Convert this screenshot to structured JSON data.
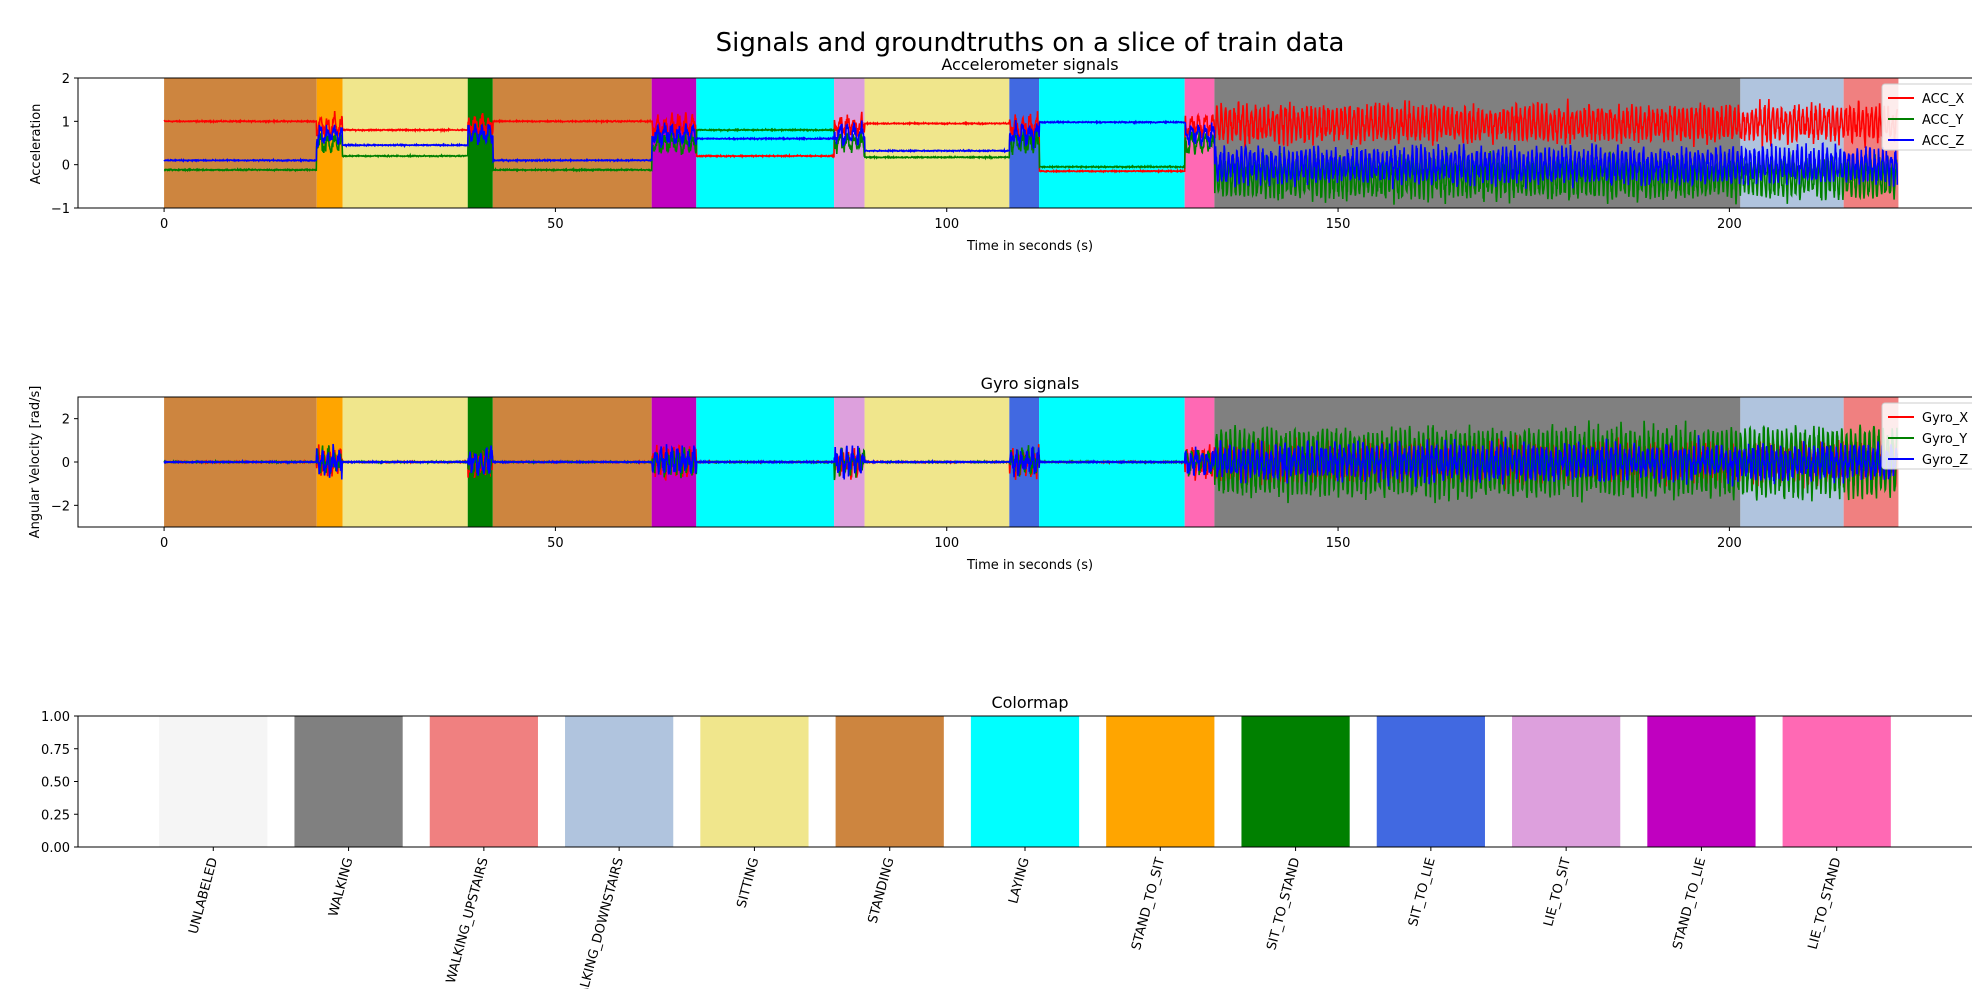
{
  "figure_title": "Signals and groundtruths  on a slice of train data",
  "chart_data": [
    {
      "type": "line",
      "title": "Accelerometer signals",
      "xlabel": "Time in seconds (s)",
      "ylabel": "Acceleration",
      "xlim": [
        -11,
        231
      ],
      "ylim": [
        -1,
        2
      ],
      "xticks": [
        0,
        50,
        100,
        150,
        200
      ],
      "yticks": [
        -1,
        0,
        1,
        2
      ],
      "legend": [
        "ACC_X",
        "ACC_Y",
        "ACC_Z"
      ],
      "legend_position": "right",
      "series": [
        {
          "name": "ACC_X",
          "color": "#ff0000"
        },
        {
          "name": "ACC_Y",
          "color": "#008000"
        },
        {
          "name": "ACC_Z",
          "color": "#0000ff"
        }
      ]
    },
    {
      "type": "line",
      "title": "Gyro signals",
      "xlabel": "Time in seconds (s)",
      "ylabel": "Angular Velocity [rad/s]",
      "xlim": [
        -11,
        231
      ],
      "ylim": [
        -3,
        3
      ],
      "xticks": [
        0,
        50,
        100,
        150,
        200
      ],
      "yticks": [
        -2,
        0,
        2
      ],
      "legend": [
        "Gyro_X",
        "Gyro_Y",
        "Gyro_Z"
      ],
      "legend_position": "right",
      "series": [
        {
          "name": "Gyro_X",
          "color": "#ff0000"
        },
        {
          "name": "Gyro_Y",
          "color": "#008000"
        },
        {
          "name": "Gyro_Z",
          "color": "#0000ff"
        }
      ]
    },
    {
      "type": "bar",
      "title": "Colormap",
      "categories": [
        "UNLABELED",
        "WALKING",
        "WALKING_UPSTAIRS",
        "WALKING_DOWNSTAIRS",
        "SITTING",
        "STANDING",
        "LAYING",
        "STAND_TO_SIT",
        "SIT_TO_STAND",
        "SIT_TO_LIE",
        "LIE_TO_SIT",
        "STAND_TO_LIE",
        "LIE_TO_STAND"
      ],
      "values": [
        1,
        1,
        1,
        1,
        1,
        1,
        1,
        1,
        1,
        1,
        1,
        1,
        1
      ],
      "colors": [
        "#f5f5f5",
        "#808080",
        "#f08080",
        "#b0c4de",
        "#f0e68c",
        "#cd853f",
        "#00ffff",
        "#ffa500",
        "#008000",
        "#4169e1",
        "#dda0dd",
        "#c000c0",
        "#ff69b4"
      ],
      "ylim": [
        0,
        1
      ],
      "yticks": [
        "0.00",
        "0.25",
        "0.50",
        "0.75",
        "1.00"
      ],
      "xlim": [
        -1,
        13
      ]
    }
  ],
  "activity_segments": [
    {
      "start": 0,
      "end": 19.5,
      "activity": "STANDING"
    },
    {
      "start": 19.5,
      "end": 22.8,
      "activity": "STAND_TO_SIT"
    },
    {
      "start": 22.8,
      "end": 38.8,
      "activity": "SITTING"
    },
    {
      "start": 38.8,
      "end": 42.0,
      "activity": "SIT_TO_STAND"
    },
    {
      "start": 42.0,
      "end": 62.3,
      "activity": "STANDING"
    },
    {
      "start": 62.3,
      "end": 68.0,
      "activity": "STAND_TO_LIE"
    },
    {
      "start": 68.0,
      "end": 85.6,
      "activity": "LAYING"
    },
    {
      "start": 85.6,
      "end": 89.5,
      "activity": "LIE_TO_SIT"
    },
    {
      "start": 89.5,
      "end": 108.0,
      "activity": "SITTING"
    },
    {
      "start": 108.0,
      "end": 111.8,
      "activity": "SIT_TO_LIE"
    },
    {
      "start": 111.8,
      "end": 130.4,
      "activity": "LAYING"
    },
    {
      "start": 130.4,
      "end": 134.2,
      "activity": "LIE_TO_STAND"
    },
    {
      "start": 134.2,
      "end": 201.4,
      "activity": "WALKING"
    },
    {
      "start": 201.4,
      "end": 214.6,
      "activity": "WALKING_DOWNSTAIRS"
    },
    {
      "start": 214.6,
      "end": 221.6,
      "activity": "WALKING_UPSTAIRS"
    }
  ]
}
